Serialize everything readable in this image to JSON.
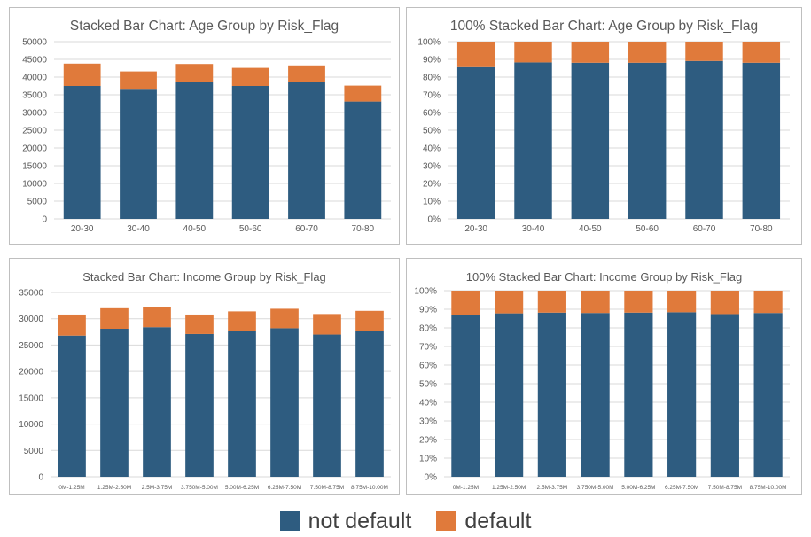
{
  "colors": {
    "not_default": "#2e5c80",
    "default": "#e07a3b",
    "grid": "#d9d9d9",
    "text": "#595959"
  },
  "legend": {
    "position": "bottom",
    "items": [
      "not default",
      "default"
    ]
  },
  "chart_data": [
    {
      "type": "bar",
      "stacked": true,
      "grid": true,
      "title": "Stacked Bar Chart: Age Group by Risk_Flag",
      "categories": [
        "20-30",
        "30-40",
        "40-50",
        "50-60",
        "60-70",
        "70-80"
      ],
      "ylim": [
        0,
        50000
      ],
      "yticks": [
        "0",
        "5000",
        "10000",
        "15000",
        "20000",
        "25000",
        "30000",
        "35000",
        "40000",
        "45000",
        "50000"
      ],
      "series": [
        {
          "name": "not default",
          "values": [
            37500,
            36700,
            38500,
            37500,
            38600,
            33100
          ]
        },
        {
          "name": "default",
          "values": [
            6300,
            4900,
            5200,
            5100,
            4700,
            4500
          ]
        }
      ]
    },
    {
      "type": "bar",
      "stacked": true,
      "grid": true,
      "title": "100% Stacked Bar Chart: Age Group by Risk_Flag",
      "categories": [
        "20-30",
        "30-40",
        "40-50",
        "50-60",
        "60-70",
        "70-80"
      ],
      "ylim": [
        0,
        100
      ],
      "yticks": [
        "0%",
        "10%",
        "20%",
        "30%",
        "40%",
        "50%",
        "60%",
        "70%",
        "80%",
        "90%",
        "100%"
      ],
      "series": [
        {
          "name": "not default",
          "values": [
            85.6,
            88.3,
            88.1,
            88.1,
            89.1,
            88.1
          ]
        },
        {
          "name": "default",
          "values": [
            14.4,
            11.7,
            11.9,
            11.9,
            10.9,
            11.9
          ]
        }
      ]
    },
    {
      "type": "bar",
      "stacked": true,
      "grid": true,
      "title": "Stacked Bar Chart: Income Group by Risk_Flag",
      "categories": [
        "0M-1.25M",
        "1.25M-2.50M",
        "2.5M-3.75M",
        "3.750M-5.00M",
        "5.00M-6.25M",
        "6.25M-7.50M",
        "7.50M-8.75M",
        "8.75M-10.00M"
      ],
      "ylim": [
        0,
        35000
      ],
      "yticks": [
        "0",
        "5000",
        "10000",
        "15000",
        "20000",
        "25000",
        "30000",
        "35000"
      ],
      "series": [
        {
          "name": "not default",
          "values": [
            26800,
            28100,
            28400,
            27100,
            27700,
            28200,
            27000,
            27700
          ]
        },
        {
          "name": "default",
          "values": [
            4000,
            3900,
            3800,
            3700,
            3700,
            3700,
            3900,
            3800
          ]
        }
      ]
    },
    {
      "type": "bar",
      "stacked": true,
      "grid": true,
      "title": "100% Stacked Bar Chart: Income Group by Risk_Flag",
      "categories": [
        "0M-1.25M",
        "1.25M-2.50M",
        "2.5M-3.75M",
        "3.750M-5.00M",
        "5.00M-6.25M",
        "6.25M-7.50M",
        "7.50M-8.75M",
        "8.75M-10.00M"
      ],
      "ylim": [
        0,
        100
      ],
      "yticks": [
        "0%",
        "10%",
        "20%",
        "30%",
        "40%",
        "50%",
        "60%",
        "70%",
        "80%",
        "90%",
        "100%"
      ],
      "series": [
        {
          "name": "not default",
          "values": [
            86.9,
            87.8,
            88.2,
            88.0,
            88.2,
            88.4,
            87.4,
            88.0
          ]
        },
        {
          "name": "default",
          "values": [
            13.1,
            12.2,
            11.8,
            12.0,
            11.8,
            11.6,
            12.6,
            12.0
          ]
        }
      ]
    }
  ]
}
